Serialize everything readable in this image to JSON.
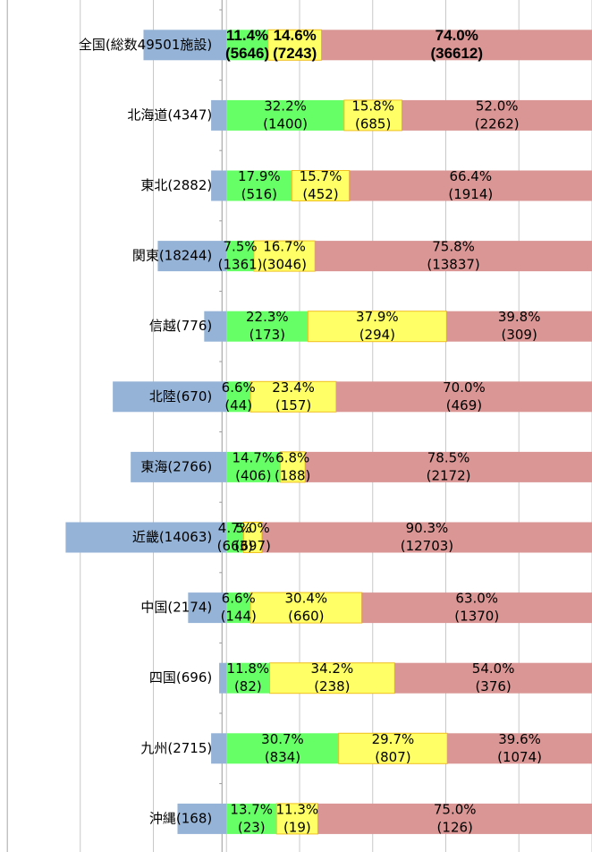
{
  "chart_data": {
    "type": "stacked-bar-horizontal",
    "categories": [
      "全国(総数49501施設)",
      "北海道(4347)",
      "東北(2882)",
      "関東(18244)",
      "信越(776)",
      "北陸(670)",
      "東海(2766)",
      "近畿(14063)",
      "中国(2174)",
      "四国(696)",
      "九州(2715)",
      "沖縄(168)"
    ],
    "label_bar": {
      "color": "#95b3d7",
      "values": [
        -22.7,
        -4.2,
        -4.2,
        -18.8,
        -6.1,
        -31.1,
        -26.2,
        -44.0,
        -10.5,
        -2.0,
        -4.2,
        -13.4
      ]
    },
    "series": [
      {
        "color": "#66ff66",
        "values": [
          11.4,
          32.2,
          17.9,
          7.5,
          22.3,
          6.6,
          14.7,
          4.7,
          6.6,
          11.8,
          30.7,
          13.7
        ],
        "value_labels": [
          "11.4%",
          "32.2%",
          "17.9%",
          "7.5%",
          "22.3%",
          "6.6%",
          "14.7%",
          "4.7%",
          "6.6%",
          "11.8%",
          "30.7%",
          "13.7%"
        ],
        "count_labels": [
          "(5646)",
          "(1400)",
          "(516)",
          "(1361)",
          "(173)",
          "(44)",
          "(406)",
          "(663)",
          "(144)",
          "(82)",
          "(834)",
          "(23)"
        ]
      },
      {
        "color": "#ffff66",
        "values": [
          14.6,
          15.8,
          15.7,
          16.7,
          37.9,
          23.4,
          6.8,
          5.0,
          30.4,
          34.2,
          29.7,
          11.3
        ],
        "value_labels": [
          "14.6%",
          "15.8%",
          "15.7%",
          "16.7%",
          "37.9%",
          "23.4%",
          "6.8%",
          "5.0%",
          "30.4%",
          "34.2%",
          "29.7%",
          "11.3%"
        ],
        "count_labels": [
          "(7243)",
          "(685)",
          "(452)",
          "(3046)",
          "(294)",
          "(157)",
          "(188)",
          "(697)",
          "(660)",
          "(238)",
          "(807)",
          "(19)"
        ]
      },
      {
        "color": "#d99694",
        "values": [
          74.0,
          52.0,
          66.4,
          75.8,
          39.8,
          70.0,
          78.5,
          90.3,
          63.0,
          54.0,
          39.6,
          75.0
        ],
        "value_labels": [
          "74.0%",
          "52.0%",
          "66.4%",
          "75.8%",
          "39.8%",
          "70.0%",
          "78.5%",
          "90.3%",
          "63.0%",
          "54.0%",
          "39.6%",
          "75.0%"
        ],
        "count_labels": [
          "(36612)",
          "(2262)",
          "(1914)",
          "(13837)",
          "(309)",
          "(469)",
          "(2172)",
          "(12703)",
          "(1370)",
          "(376)",
          "(1074)",
          "(126)"
        ]
      }
    ],
    "xlim": [
      -60,
      100
    ],
    "xticks": [
      -60,
      -40,
      -20,
      0,
      20,
      40,
      60,
      80,
      100
    ],
    "grid": true
  }
}
